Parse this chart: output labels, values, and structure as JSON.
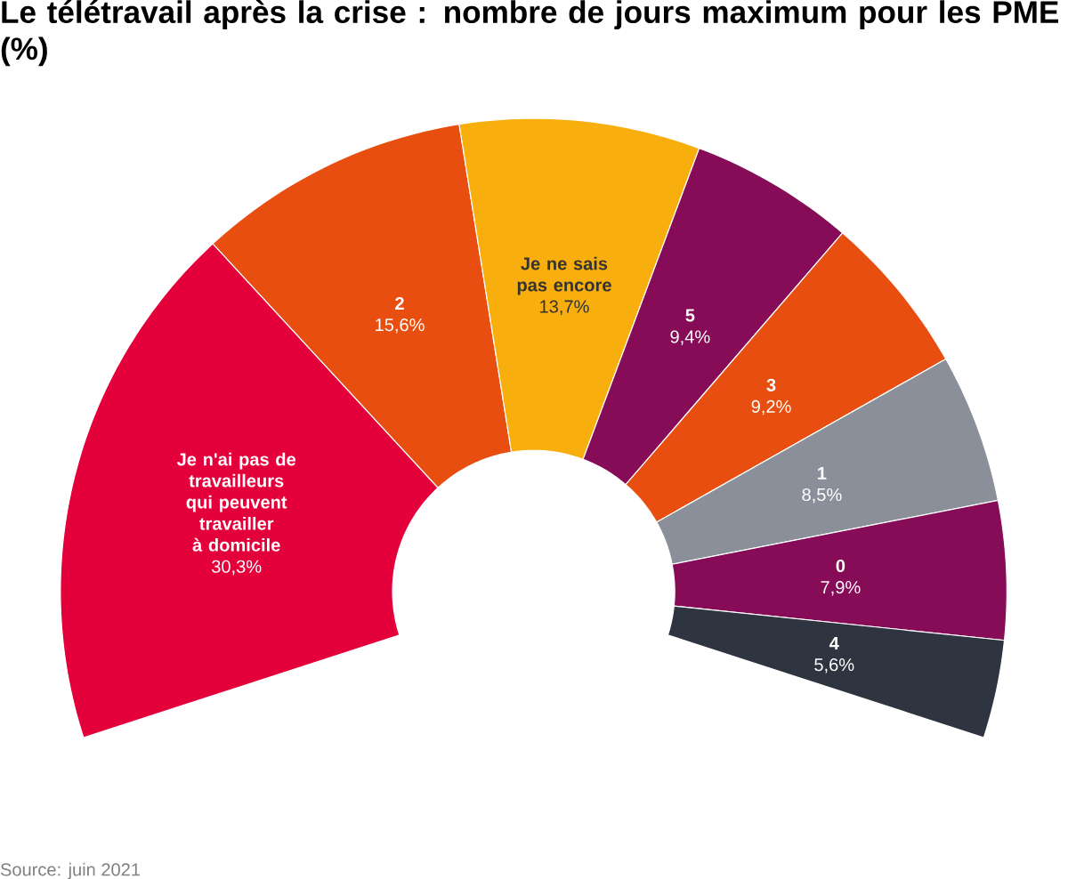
{
  "chart_data": {
    "type": "donut",
    "title": "Le télétravail après la crise : nombre de jours maximum pour les PME (%)",
    "categories": [
      "Je n'ai pas de travailleurs qui peuvent travailler à domicile",
      "2",
      "Je ne sais pas encore",
      "5",
      "3",
      "1",
      "0",
      "4"
    ],
    "values": [
      30.3,
      15.6,
      13.7,
      9.4,
      9.2,
      8.5,
      7.9,
      5.6
    ],
    "colors": [
      "#e4003a",
      "#e84e0f",
      "#f8ae0d",
      "#860c57",
      "#e84e0f",
      "#8a8f9a",
      "#860c57",
      "#2e3440"
    ],
    "value_labels": [
      "30,3%",
      "15,6%",
      "13,7%",
      "9,4%",
      "9,2%",
      "8,5%",
      "7,9%",
      "5,6%"
    ],
    "annotations": [
      "Source: juin 2021"
    ]
  }
}
